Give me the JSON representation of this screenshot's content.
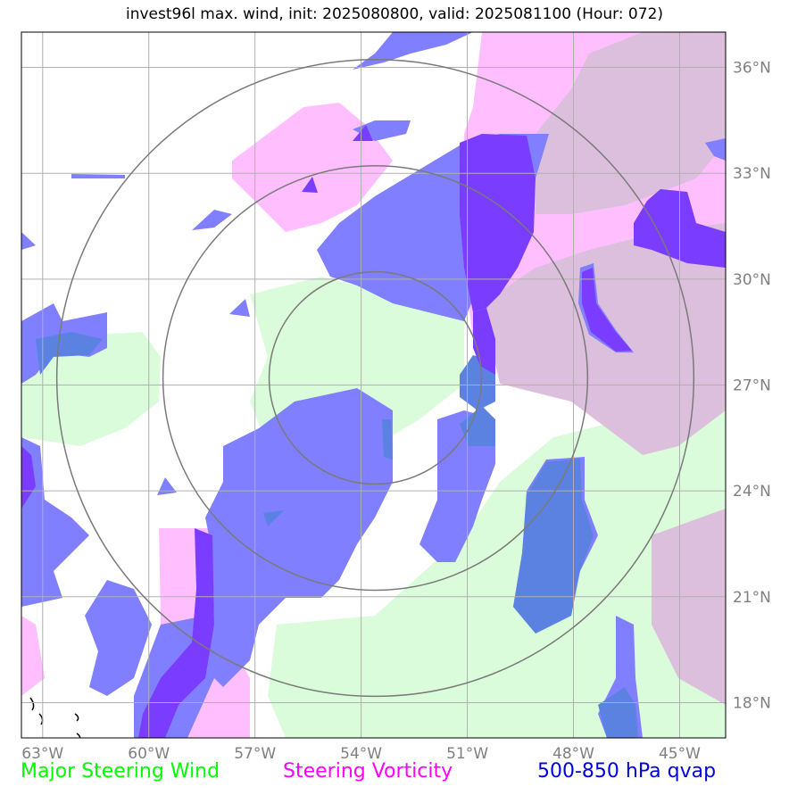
{
  "title": "invest96l max. wind, init: 2025080800, valid: 2025081100 (Hour: 072)",
  "map": {
    "lon_range": [
      -63.6,
      -43.7
    ],
    "lat_range": [
      17.0,
      37.0
    ],
    "x_ticks": [
      "63°W",
      "60°W",
      "57°W",
      "54°W",
      "51°W",
      "48°W",
      "45°W"
    ],
    "y_ticks": [
      "36°N",
      "33°N",
      "30°N",
      "27°N",
      "24°N",
      "21°N",
      "18°N"
    ],
    "storm_center": {
      "lon": -53.6,
      "lat": 27.2
    },
    "range_rings_deg": [
      3,
      6,
      9
    ]
  },
  "legend": {
    "wind": {
      "label": "Major Steering Wind",
      "color": "#00ff00"
    },
    "vorticity": {
      "label": "Steering Vorticity",
      "color": "#ff00ff"
    },
    "qvap": {
      "label": "500-850 hPa qvap",
      "color": "#0000dd"
    }
  },
  "colors": {
    "wind_fill": "#dbfcdb",
    "vort_fill": "#ffbfff",
    "vort_overlap": "#dcbedd",
    "qvap_fill": "#7f7fff",
    "qvap_dense": "#5b82e0",
    "qvap_core": "#7a3cff",
    "grid": "#b0b0b0",
    "ring": "#7a7a7a"
  }
}
